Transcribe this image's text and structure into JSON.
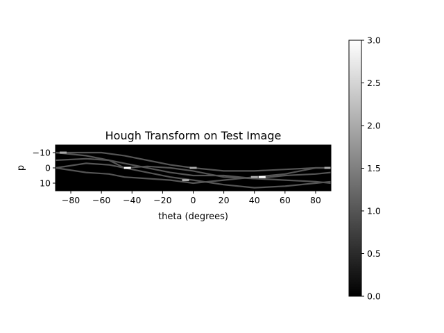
{
  "chart_data": {
    "type": "heatmap",
    "title": "Hough Transform on Test Image",
    "xlabel": "theta (degrees)",
    "ylabel": "p",
    "xlim": [
      -90,
      90
    ],
    "ylim": [
      15,
      -15
    ],
    "x_ticks": [
      -80,
      -60,
      -40,
      -20,
      0,
      20,
      40,
      60,
      80
    ],
    "x_tick_labels": [
      "−80",
      "−60",
      "−40",
      "−20",
      "0",
      "20",
      "40",
      "60",
      "80"
    ],
    "y_ticks": [
      -10,
      0,
      10
    ],
    "y_tick_labels": [
      "−10",
      "0",
      "10"
    ],
    "colormap": "gray",
    "background_value": 0,
    "colorbar": {
      "min": 0.0,
      "max": 3.0,
      "ticks": [
        0.0,
        0.5,
        1.0,
        1.5,
        2.0,
        2.5,
        3.0
      ],
      "tick_labels": [
        "0.0",
        "0.5",
        "1.0",
        "1.5",
        "2.0",
        "2.5",
        "3.0"
      ]
    },
    "curves": [
      {
        "points": [
          [
            -90,
            -10
          ],
          [
            -60,
            -10
          ],
          [
            -45,
            -8
          ],
          [
            -30,
            -5
          ],
          [
            -15,
            -2
          ],
          [
            0,
            0
          ],
          [
            20,
            2
          ],
          [
            40,
            2
          ],
          [
            60,
            1
          ],
          [
            80,
            0
          ],
          [
            90,
            0
          ]
        ],
        "value": 1
      },
      {
        "points": [
          [
            -90,
            -5
          ],
          [
            -70,
            -6
          ],
          [
            -55,
            -5
          ],
          [
            -45,
            0
          ],
          [
            -30,
            3
          ],
          [
            -15,
            6
          ],
          [
            0,
            8
          ],
          [
            20,
            11
          ],
          [
            40,
            13
          ],
          [
            60,
            12
          ],
          [
            80,
            10
          ],
          [
            90,
            9
          ]
        ],
        "value": 1
      },
      {
        "points": [
          [
            -90,
            0
          ],
          [
            -70,
            3
          ],
          [
            -55,
            4
          ],
          [
            -45,
            6
          ],
          [
            -30,
            7
          ],
          [
            -15,
            8
          ],
          [
            0,
            10
          ],
          [
            20,
            8
          ],
          [
            40,
            6
          ],
          [
            60,
            4
          ],
          [
            80,
            0
          ],
          [
            90,
            0
          ]
        ],
        "value": 1
      },
      {
        "points": [
          [
            -90,
            0
          ],
          [
            -70,
            -3
          ],
          [
            -55,
            -2
          ],
          [
            -45,
            0
          ],
          [
            -30,
            -1
          ],
          [
            -15,
            0
          ],
          [
            0,
            2
          ],
          [
            20,
            6
          ],
          [
            40,
            7
          ],
          [
            60,
            8
          ],
          [
            80,
            9
          ],
          [
            90,
            10
          ]
        ],
        "value": 1
      },
      {
        "points": [
          [
            -90,
            -10
          ],
          [
            -70,
            -8
          ],
          [
            -55,
            -5
          ],
          [
            -45,
            -3
          ],
          [
            -30,
            0
          ],
          [
            -15,
            3
          ],
          [
            0,
            5
          ],
          [
            20,
            5
          ],
          [
            40,
            7
          ],
          [
            60,
            5
          ],
          [
            80,
            4
          ],
          [
            90,
            3
          ]
        ],
        "value": 1
      }
    ],
    "peaks": [
      {
        "x": -43,
        "y": 0,
        "value": 3
      },
      {
        "x": 0,
        "y": 0,
        "value": 2
      },
      {
        "x": 45,
        "y": 6,
        "value": 3
      },
      {
        "x": 40,
        "y": 6,
        "value": 2
      },
      {
        "x": 88,
        "y": 0,
        "value": 2
      },
      {
        "x": -85,
        "y": -10,
        "value": 2
      },
      {
        "x": -5,
        "y": 8,
        "value": 2
      }
    ]
  }
}
